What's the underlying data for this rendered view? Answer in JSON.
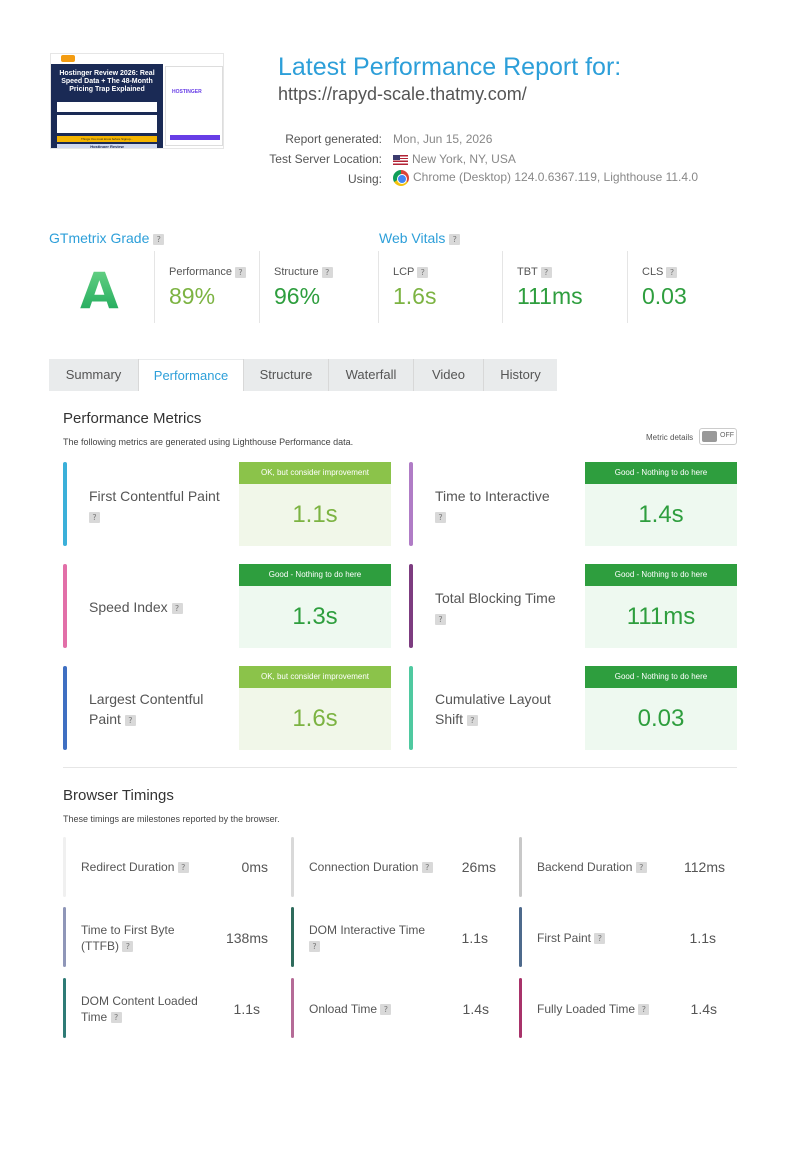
{
  "thumbnail": {
    "hero_title": "Hostinger Review 2026: Real Speed Data + The 48-Month Pricing Trap Explained",
    "brand": "HOSTINGER",
    "strip": "Things You must know before Signup...",
    "footer": "Hostinger Review"
  },
  "header": {
    "title": "Latest Performance Report for:",
    "url": "https://rapyd-scale.thatmy.com/",
    "report_generated_label": "Report generated:",
    "report_generated_value": "Mon, Jun 15, 2026",
    "server_location_label": "Test Server Location:",
    "server_location_value": "New York, NY, USA",
    "using_label": "Using:",
    "using_value": "Chrome (Desktop) 124.0.6367.119, Lighthouse 11.4.0"
  },
  "grade": {
    "heading": "GTmetrix Grade",
    "letter": "A",
    "performance_label": "Performance",
    "performance_value": "89%",
    "structure_label": "Structure",
    "structure_value": "96%"
  },
  "vitals": {
    "heading": "Web Vitals",
    "lcp_label": "LCP",
    "lcp_value": "1.6s",
    "tbt_label": "TBT",
    "tbt_value": "111ms",
    "cls_label": "CLS",
    "cls_value": "0.03"
  },
  "tabs": [
    "Summary",
    "Performance",
    "Structure",
    "Waterfall",
    "Video",
    "History"
  ],
  "active_tab": "Performance",
  "performance_metrics": {
    "heading": "Performance Metrics",
    "description": "The following metrics are generated using Lighthouse Performance data.",
    "metric_details_label": "Metric details",
    "toggle_state": "OFF",
    "items": [
      {
        "name": "First Contentful Paint",
        "badge": "OK, but consider improvement",
        "value": "1.1s",
        "color": "#3bb0d9"
      },
      {
        "name": "Time to Interactive",
        "badge": "Good - Nothing to do here",
        "value": "1.4s",
        "color": "#b07cc6"
      },
      {
        "name": "Speed Index",
        "badge": "Good - Nothing to do here",
        "value": "1.3s",
        "color": "#e26fa8"
      },
      {
        "name": "Total Blocking Time",
        "badge": "Good - Nothing to do here",
        "value": "111ms",
        "color": "#7d3c80"
      },
      {
        "name": "Largest Contentful Paint",
        "badge": "OK, but consider improvement",
        "value": "1.6s",
        "color": "#3f6fc2"
      },
      {
        "name": "Cumulative Layout Shift",
        "badge": "Good - Nothing to do here",
        "value": "0.03",
        "color": "#4fc9a0"
      }
    ]
  },
  "browser_timings": {
    "heading": "Browser Timings",
    "description": "These timings are milestones reported by the browser.",
    "items": [
      {
        "name": "Redirect Duration",
        "value": "0ms",
        "color": "#f0f0f0"
      },
      {
        "name": "Connection Duration",
        "value": "26ms",
        "color": "#d9d9d9"
      },
      {
        "name": "Backend Duration",
        "value": "112ms",
        "color": "#c8c8c8"
      },
      {
        "name": "Time to First Byte (TTFB)",
        "value": "138ms",
        "color": "#8f96b8"
      },
      {
        "name": "DOM Interactive Time",
        "value": "1.1s",
        "color": "#2f6b5c"
      },
      {
        "name": "First Paint",
        "value": "1.1s",
        "color": "#4e6a8c"
      },
      {
        "name": "DOM Content Loaded Time",
        "value": "1.1s",
        "color": "#2f7b76"
      },
      {
        "name": "Onload Time",
        "value": "1.4s",
        "color": "#b56b97"
      },
      {
        "name": "Fully Loaded Time",
        "value": "1.4s",
        "color": "#a8336a"
      }
    ]
  },
  "colors": {
    "accent": "#2d9fd9",
    "good": "#2e9e3e",
    "average": "#7cb342"
  }
}
